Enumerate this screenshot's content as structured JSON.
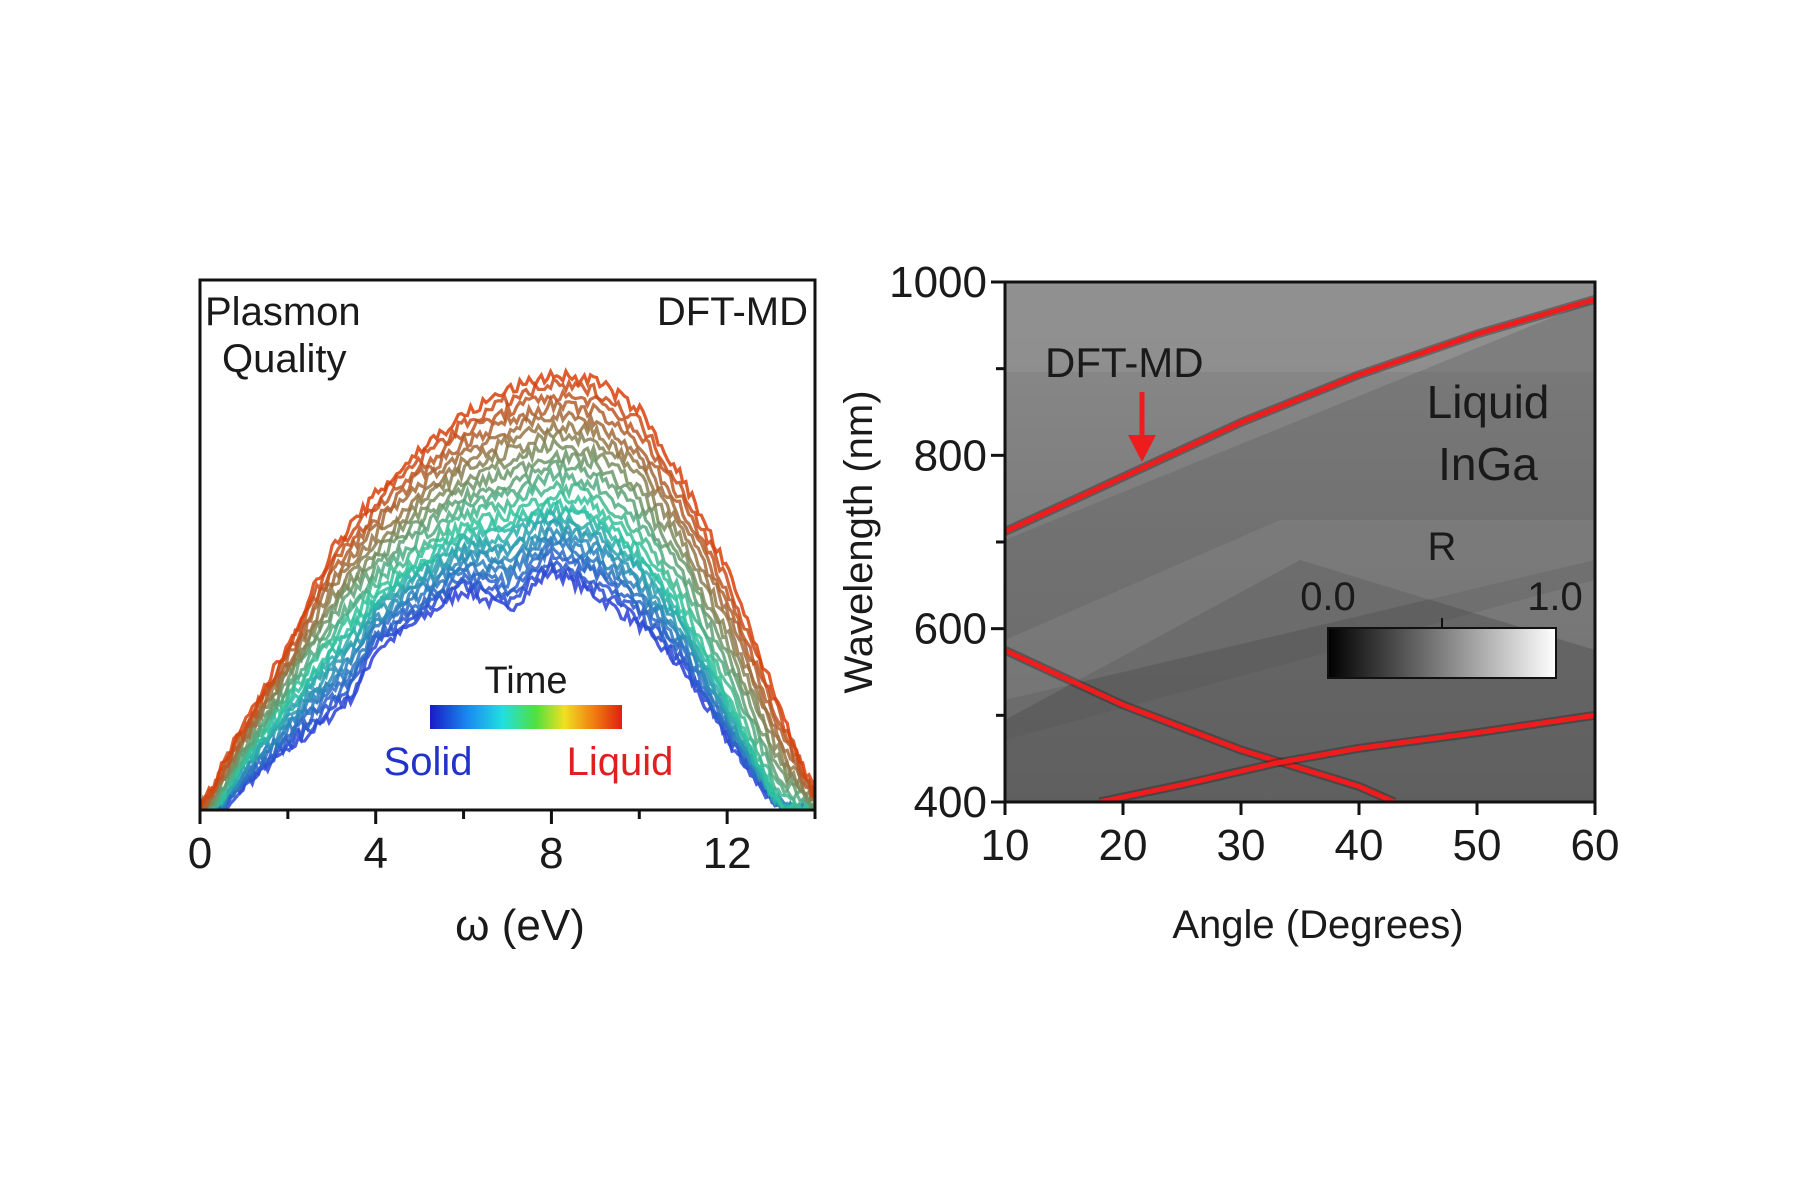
{
  "chart_data": [
    {
      "type": "line",
      "panel": "left",
      "annotations": [
        "Plasmon",
        "Quality",
        "DFT-MD"
      ],
      "xlabel": "ω (eV)",
      "ylabel": "",
      "xlim": [
        0,
        14
      ],
      "ylim": [
        0,
        1
      ],
      "xticks": [
        0,
        4,
        8,
        12
      ],
      "y_tick_labels_shown": false,
      "colorbar": {
        "label": "Time",
        "left_label": "Solid",
        "right_label": "Liquid",
        "left_color": "#2233cc",
        "right_color": "#e02020",
        "colormap": "jet"
      },
      "series": [
        {
          "name": "Solid",
          "x": [
            0.5,
            1.0,
            2.0,
            3.0,
            3.5,
            4.0,
            5.0,
            6.0,
            7.0,
            8.0,
            9.0,
            10.0,
            11.0,
            12.0,
            13.0,
            13.5
          ],
          "y": [
            0.0,
            0.05,
            0.12,
            0.19,
            0.23,
            0.32,
            0.38,
            0.44,
            0.4,
            0.48,
            0.43,
            0.37,
            0.28,
            0.14,
            0.02,
            0.0
          ]
        },
        {
          "name": "",
          "x": [
            0.3,
            1.0,
            2.0,
            3.0,
            4.0,
            5.0,
            6.0,
            7.0,
            8.0,
            9.0,
            10.0,
            11.0,
            12.0,
            13.0,
            13.3
          ],
          "y": [
            0.0,
            0.1,
            0.22,
            0.33,
            0.43,
            0.5,
            0.56,
            0.58,
            0.62,
            0.6,
            0.52,
            0.4,
            0.22,
            0.04,
            0.0
          ]
        },
        {
          "name": "Liquid",
          "x": [
            0.0,
            1.0,
            2.0,
            3.0,
            4.0,
            5.0,
            6.0,
            7.0,
            8.0,
            9.0,
            10.0,
            11.0,
            12.0,
            13.0,
            14.0
          ],
          "y": [
            0.0,
            0.17,
            0.33,
            0.52,
            0.63,
            0.72,
            0.79,
            0.84,
            0.87,
            0.86,
            0.8,
            0.66,
            0.48,
            0.25,
            0.03
          ]
        }
      ],
      "colors": {
        "solid": "#2a3fd6",
        "mid": "#2ec7a0",
        "liquid": "#d9400b"
      }
    },
    {
      "type": "heatmap",
      "panel": "right",
      "annotations": [
        "DFT-MD",
        "Liquid",
        "InGa"
      ],
      "xlabel": "Angle (Degrees)",
      "ylabel": "Wavelength (nm)",
      "xlim": [
        10,
        60
      ],
      "ylim": [
        400,
        1000
      ],
      "xticks": [
        10,
        20,
        30,
        40,
        50,
        60
      ],
      "yticks": [
        400,
        600,
        800,
        1000
      ],
      "colorbar": {
        "label": "R",
        "min_label": "0.0",
        "max_label": "1.0",
        "range": [
          0.0,
          1.0
        ],
        "colormap": "gray"
      },
      "red_curves": [
        {
          "x": [
            10,
            20,
            30,
            40,
            50,
            60
          ],
          "y": [
            712,
            775,
            838,
            893,
            940,
            980
          ]
        },
        {
          "x": [
            10,
            20,
            30,
            40,
            43
          ],
          "y": [
            575,
            512,
            460,
            418,
            400
          ]
        },
        {
          "x": [
            18,
            25,
            33,
            40,
            50,
            60
          ],
          "y": [
            400,
            420,
            445,
            462,
            480,
            500
          ]
        }
      ],
      "curve_color": "#ee1c1c"
    }
  ]
}
